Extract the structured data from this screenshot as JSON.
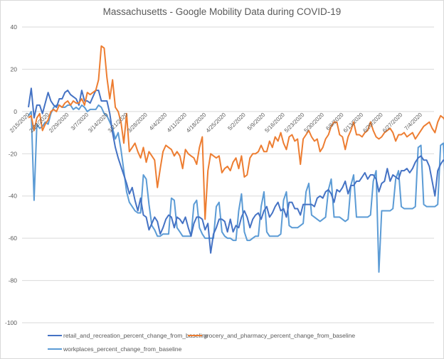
{
  "chart_data": {
    "type": "line",
    "title": "Massachusetts - Google Mobility  Data during COVID-19",
    "xlabel": "",
    "ylabel": "",
    "ylim": [
      -100,
      40
    ],
    "yticks": [
      40,
      20,
      0,
      -20,
      -40,
      -60,
      -80,
      -100
    ],
    "grid": true,
    "legend_position": "bottom",
    "start_date": "2/15/2020",
    "x_tick_labels": [
      "2/15/2020",
      "2/22/2020",
      "2/29/2020",
      "3/7/2020",
      "3/14/2020",
      "3/21/2020",
      "3/28/2020",
      "4/4/2020",
      "4/11/2020",
      "4/18/2020",
      "4/25/2020",
      "5/2/2020",
      "5/9/2020",
      "5/16/2020",
      "5/23/2020",
      "5/30/2020",
      "6/6/2020",
      "6/13/2020",
      "6/20/2020",
      "6/27/2020",
      "7/4/2020"
    ],
    "series": [
      {
        "name": "retail_and_recreation_percent_change_from_baseline",
        "color": "#4472C4",
        "values": [
          2,
          11,
          -3,
          3,
          3,
          -1,
          4,
          9,
          5,
          3,
          2,
          6,
          6,
          9,
          10,
          8,
          7,
          6,
          3,
          10,
          5,
          5,
          4,
          7,
          10,
          10,
          5,
          5,
          5,
          -1,
          -10,
          -17,
          -22,
          -26,
          -30,
          -34,
          -39,
          -36,
          -42,
          -47,
          -41,
          -49,
          -50,
          -56,
          -53,
          -50,
          -52,
          -58,
          -55,
          -51,
          -49,
          -50,
          -55,
          -50,
          -51,
          -53,
          -50,
          -55,
          -59,
          -53,
          -50,
          -50,
          -51,
          -56,
          -53,
          -67,
          -58,
          -55,
          -51,
          -51,
          -52,
          -57,
          -51,
          -57,
          -54,
          -55,
          -50,
          -47,
          -50,
          -55,
          -51,
          -49,
          -48,
          -51,
          -47,
          -45,
          -50,
          -48,
          -45,
          -43,
          -47,
          -46,
          -50,
          -43,
          -43,
          -46,
          -46,
          -49,
          -44,
          -44,
          -44,
          -44,
          -45,
          -41,
          -40,
          -41,
          -38,
          -37,
          -39,
          -43,
          -37,
          -38,
          -36,
          -33,
          -39,
          -35,
          -35,
          -33,
          -33,
          -31,
          -29,
          -32,
          -30,
          -30,
          -32,
          -38,
          -34,
          -33,
          -27,
          -33,
          -30,
          -31,
          -32,
          -28,
          -28,
          -27,
          -29,
          -27,
          -24,
          -22,
          -21,
          -23,
          -23,
          -26,
          -33,
          -40,
          -28,
          -25,
          -23,
          -24,
          -24,
          -21,
          -21,
          -22,
          -23,
          -21,
          -26,
          -22,
          -23,
          -21,
          -19,
          -18,
          -19,
          -18,
          -18,
          -20,
          -24,
          -27,
          -24,
          -21,
          -17,
          -17,
          -19,
          -17,
          -20,
          -18,
          -25,
          -26,
          -23,
          -19,
          -16,
          -15,
          -13,
          -12,
          -8,
          -5,
          -16,
          -40,
          -22,
          -9
        ]
      },
      {
        "name": "grocery_and_pharmacy_percent_change_from_baseline",
        "color": "#ED7D31",
        "values": [
          -3,
          -2,
          -9,
          -3,
          -1,
          -9,
          -6,
          -4,
          0,
          1,
          0,
          3,
          2,
          4,
          5,
          3,
          5,
          4,
          4,
          6,
          3,
          9,
          8,
          9,
          10,
          15,
          31,
          30,
          16,
          6,
          15,
          2,
          0,
          -5,
          -15,
          -1,
          -19,
          -17,
          -15,
          -19,
          -22,
          -17,
          -24,
          -19,
          -21,
          -23,
          -36,
          -27,
          -19,
          -16,
          -17,
          -18,
          -21,
          -19,
          -21,
          -27,
          -18,
          -20,
          -21,
          -22,
          -25,
          -17,
          -12,
          -51,
          -28,
          -20,
          -21,
          -22,
          -21,
          -29,
          -27,
          -26,
          -28,
          -24,
          -22,
          -27,
          -21,
          -31,
          -30,
          -22,
          -20,
          -20,
          -19,
          -16,
          -19,
          -19,
          -14,
          -17,
          -12,
          -14,
          -10,
          -15,
          -18,
          -12,
          -11,
          -14,
          -13,
          -25,
          -13,
          -11,
          -9,
          -12,
          -14,
          -13,
          -19,
          -17,
          -13,
          -11,
          -7,
          -5,
          -5,
          -11,
          -12,
          -18,
          -12,
          -9,
          -5,
          -11,
          -11,
          -12,
          -10,
          -9,
          -5,
          -9,
          -12,
          -13,
          -12,
          -10,
          -9,
          -8,
          -10,
          -14,
          -11,
          -11,
          -10,
          -12,
          -11,
          -10,
          -13,
          -11,
          -9,
          -7,
          -6,
          -5,
          -8,
          -10,
          -5,
          -2,
          -3,
          -5,
          -8,
          -10,
          -7,
          -8,
          -8,
          -6,
          -2,
          -10,
          -15,
          -11,
          -9,
          -7,
          -5,
          -3,
          -10,
          -12,
          -17,
          -12,
          -10,
          -7,
          -6,
          -3,
          2,
          8,
          9,
          -5,
          -19,
          -17,
          -6
        ]
      },
      {
        "name": "workplaces_percent_change_from_baseline",
        "color": "#5B9BD5",
        "values": [
          -2,
          0,
          -42,
          -6,
          -8,
          -7,
          -5,
          -6,
          -1,
          2,
          3,
          3,
          2,
          2,
          3,
          3,
          1,
          2,
          1,
          3,
          2,
          0,
          1,
          1,
          1,
          3,
          2,
          -1,
          -2,
          -5,
          -8,
          -13,
          -10,
          -18,
          -28,
          -38,
          -43,
          -45,
          -47,
          -48,
          -48,
          -30,
          -32,
          -44,
          -54,
          -56,
          -59,
          -59,
          -58,
          -58,
          -58,
          -41,
          -42,
          -55,
          -57,
          -59,
          -59,
          -59,
          -59,
          -44,
          -42,
          -55,
          -58,
          -60,
          -60,
          -60,
          -60,
          -45,
          -43,
          -57,
          -59,
          -60,
          -60,
          -61,
          -61,
          -47,
          -39,
          -57,
          -61,
          -61,
          -60,
          -59,
          -59,
          -45,
          -38,
          -57,
          -59,
          -59,
          -59,
          -59,
          -58,
          -42,
          -38,
          -54,
          -55,
          -55,
          -55,
          -54,
          -53,
          -38,
          -34,
          -49,
          -50,
          -51,
          -52,
          -51,
          -50,
          -37,
          -32,
          -50,
          -50,
          -50,
          -51,
          -52,
          -51,
          -35,
          -30,
          -50,
          -50,
          -50,
          -50,
          -50,
          -49,
          -33,
          -28,
          -76,
          -47,
          -47,
          -47,
          -47,
          -46,
          -32,
          -28,
          -45,
          -46,
          -46,
          -46,
          -46,
          -45,
          -17,
          -16,
          -44,
          -45,
          -45,
          -45,
          -45,
          -44,
          -16,
          -15,
          -43,
          -45,
          -45,
          -45,
          -45,
          -44,
          -20,
          -18,
          -44,
          -44,
          -44,
          -45,
          -43,
          -43,
          -22,
          -18,
          -44,
          -44,
          -44,
          -44,
          -44,
          -43,
          -18,
          -17,
          -45,
          -45,
          -45,
          -45,
          -45,
          -61,
          -30,
          -18,
          -48
        ]
      }
    ]
  }
}
